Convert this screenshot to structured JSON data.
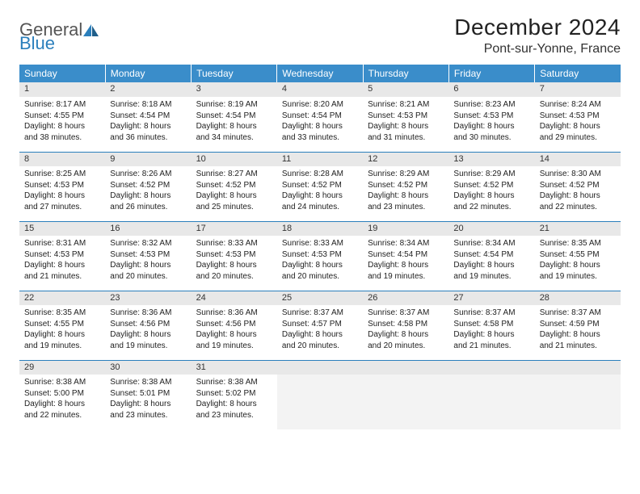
{
  "logo": {
    "part1": "General",
    "part2": "Blue"
  },
  "title": "December 2024",
  "location": "Pont-sur-Yonne, France",
  "colors": {
    "header_bg": "#3a8dca",
    "header_text": "#ffffff",
    "daynum_bg": "#e8e8e8",
    "border": "#2b7fbc",
    "logo_gray": "#555555",
    "logo_blue": "#2b7fbc"
  },
  "weekdays": [
    "Sunday",
    "Monday",
    "Tuesday",
    "Wednesday",
    "Thursday",
    "Friday",
    "Saturday"
  ],
  "weeks": [
    [
      {
        "n": "1",
        "sr": "8:17 AM",
        "ss": "4:55 PM",
        "dl": "8 hours and 38 minutes."
      },
      {
        "n": "2",
        "sr": "8:18 AM",
        "ss": "4:54 PM",
        "dl": "8 hours and 36 minutes."
      },
      {
        "n": "3",
        "sr": "8:19 AM",
        "ss": "4:54 PM",
        "dl": "8 hours and 34 minutes."
      },
      {
        "n": "4",
        "sr": "8:20 AM",
        "ss": "4:54 PM",
        "dl": "8 hours and 33 minutes."
      },
      {
        "n": "5",
        "sr": "8:21 AM",
        "ss": "4:53 PM",
        "dl": "8 hours and 31 minutes."
      },
      {
        "n": "6",
        "sr": "8:23 AM",
        "ss": "4:53 PM",
        "dl": "8 hours and 30 minutes."
      },
      {
        "n": "7",
        "sr": "8:24 AM",
        "ss": "4:53 PM",
        "dl": "8 hours and 29 minutes."
      }
    ],
    [
      {
        "n": "8",
        "sr": "8:25 AM",
        "ss": "4:53 PM",
        "dl": "8 hours and 27 minutes."
      },
      {
        "n": "9",
        "sr": "8:26 AM",
        "ss": "4:52 PM",
        "dl": "8 hours and 26 minutes."
      },
      {
        "n": "10",
        "sr": "8:27 AM",
        "ss": "4:52 PM",
        "dl": "8 hours and 25 minutes."
      },
      {
        "n": "11",
        "sr": "8:28 AM",
        "ss": "4:52 PM",
        "dl": "8 hours and 24 minutes."
      },
      {
        "n": "12",
        "sr": "8:29 AM",
        "ss": "4:52 PM",
        "dl": "8 hours and 23 minutes."
      },
      {
        "n": "13",
        "sr": "8:29 AM",
        "ss": "4:52 PM",
        "dl": "8 hours and 22 minutes."
      },
      {
        "n": "14",
        "sr": "8:30 AM",
        "ss": "4:52 PM",
        "dl": "8 hours and 22 minutes."
      }
    ],
    [
      {
        "n": "15",
        "sr": "8:31 AM",
        "ss": "4:53 PM",
        "dl": "8 hours and 21 minutes."
      },
      {
        "n": "16",
        "sr": "8:32 AM",
        "ss": "4:53 PM",
        "dl": "8 hours and 20 minutes."
      },
      {
        "n": "17",
        "sr": "8:33 AM",
        "ss": "4:53 PM",
        "dl": "8 hours and 20 minutes."
      },
      {
        "n": "18",
        "sr": "8:33 AM",
        "ss": "4:53 PM",
        "dl": "8 hours and 20 minutes."
      },
      {
        "n": "19",
        "sr": "8:34 AM",
        "ss": "4:54 PM",
        "dl": "8 hours and 19 minutes."
      },
      {
        "n": "20",
        "sr": "8:34 AM",
        "ss": "4:54 PM",
        "dl": "8 hours and 19 minutes."
      },
      {
        "n": "21",
        "sr": "8:35 AM",
        "ss": "4:55 PM",
        "dl": "8 hours and 19 minutes."
      }
    ],
    [
      {
        "n": "22",
        "sr": "8:35 AM",
        "ss": "4:55 PM",
        "dl": "8 hours and 19 minutes."
      },
      {
        "n": "23",
        "sr": "8:36 AM",
        "ss": "4:56 PM",
        "dl": "8 hours and 19 minutes."
      },
      {
        "n": "24",
        "sr": "8:36 AM",
        "ss": "4:56 PM",
        "dl": "8 hours and 19 minutes."
      },
      {
        "n": "25",
        "sr": "8:37 AM",
        "ss": "4:57 PM",
        "dl": "8 hours and 20 minutes."
      },
      {
        "n": "26",
        "sr": "8:37 AM",
        "ss": "4:58 PM",
        "dl": "8 hours and 20 minutes."
      },
      {
        "n": "27",
        "sr": "8:37 AM",
        "ss": "4:58 PM",
        "dl": "8 hours and 21 minutes."
      },
      {
        "n": "28",
        "sr": "8:37 AM",
        "ss": "4:59 PM",
        "dl": "8 hours and 21 minutes."
      }
    ],
    [
      {
        "n": "29",
        "sr": "8:38 AM",
        "ss": "5:00 PM",
        "dl": "8 hours and 22 minutes."
      },
      {
        "n": "30",
        "sr": "8:38 AM",
        "ss": "5:01 PM",
        "dl": "8 hours and 23 minutes."
      },
      {
        "n": "31",
        "sr": "8:38 AM",
        "ss": "5:02 PM",
        "dl": "8 hours and 23 minutes."
      },
      null,
      null,
      null,
      null
    ]
  ],
  "labels": {
    "sunrise": "Sunrise:",
    "sunset": "Sunset:",
    "daylight": "Daylight:"
  }
}
